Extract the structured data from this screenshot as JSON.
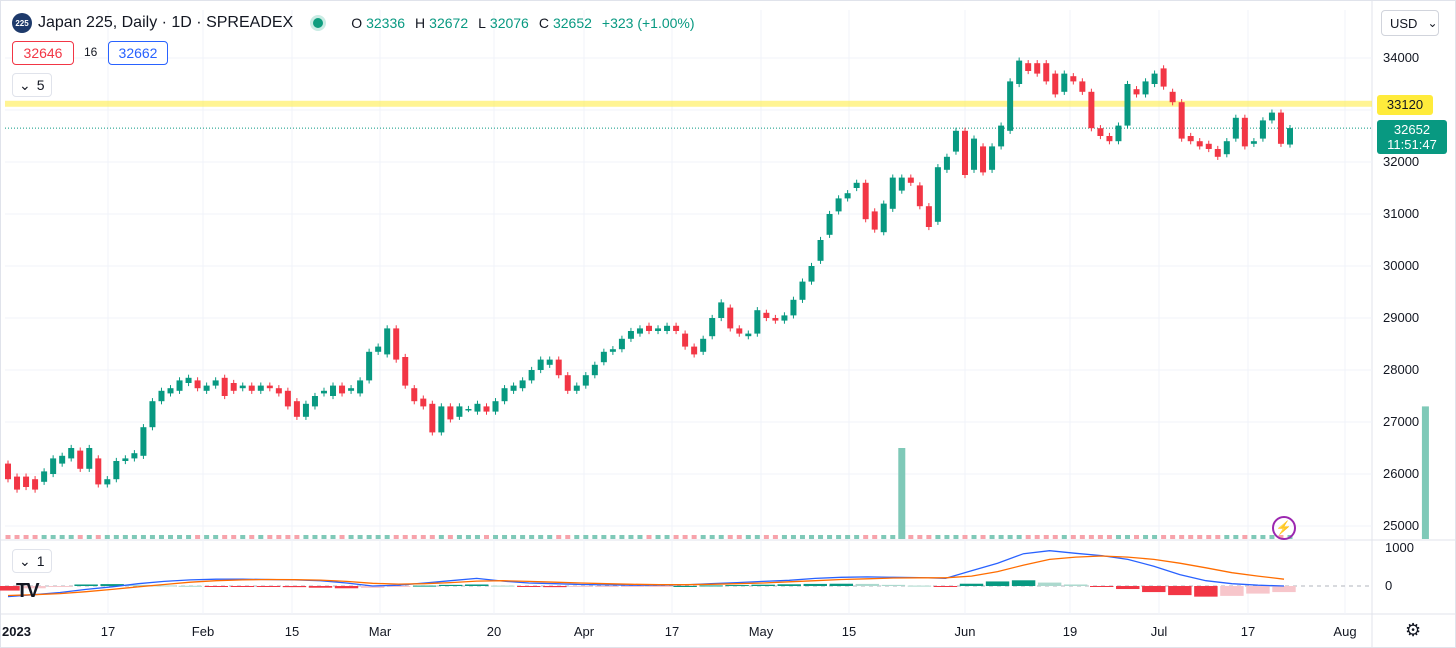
{
  "header": {
    "logo_text": "225",
    "title": "Japan 225, Daily · 1D · SPREADEX",
    "o_key": "O",
    "o_val": "32336",
    "h_key": "H",
    "h_val": "32672",
    "l_key": "L",
    "l_val": "32076",
    "c_key": "C",
    "c_val": "32652",
    "change": "+323 (+1.00%)"
  },
  "quote": {
    "bid": "32646",
    "spread": "16",
    "ask": "32662"
  },
  "main_indicator_toggle": {
    "label": "5",
    "icon": "chevron-down-icon"
  },
  "osc_indicator_toggle": {
    "label": "1",
    "icon": "chevron-down-icon"
  },
  "currency": {
    "label": "USD",
    "icon": "chevron-down-icon"
  },
  "price_level": {
    "label": "33120"
  },
  "last_price": {
    "price": "32652",
    "countdown": "11:51:47"
  },
  "icons": {
    "alert": "bolt-icon",
    "settings": "settings-icon",
    "brand": "tradingview-logo-icon"
  },
  "brand_text": "TV",
  "colors": {
    "up": "#089981",
    "down": "#f23645",
    "level": "#ffeb3b",
    "macd": "#2962ff",
    "signal": "#ff6d00",
    "vol_up": "#7fc9b8",
    "vol_down": "#f7a3ab"
  },
  "chart_data": {
    "type": "candlestick",
    "title": "Japan 225, Daily · 1D · SPREADEX",
    "x_tick_labels": [
      "2023",
      "17",
      "Feb",
      "15",
      "Mar",
      "20",
      "Apr",
      "17",
      "May",
      "15",
      "Jun",
      "19",
      "Jul",
      "17",
      "Aug"
    ],
    "y_tick_labels": [
      "34000",
      "33000",
      "32000",
      "31000",
      "30000",
      "29000",
      "28000",
      "27000",
      "26000",
      "25000"
    ],
    "ylim": [
      24800,
      34500
    ],
    "horizontal_level": 33120,
    "last_price": 32652,
    "grid": true,
    "candles": [
      [
        26200,
        25900
      ],
      [
        25950,
        25700
      ],
      [
        25950,
        25750
      ],
      [
        25900,
        25700
      ],
      [
        25850,
        26050
      ],
      [
        26000,
        26300
      ],
      [
        26200,
        26350
      ],
      [
        26300,
        26500
      ],
      [
        26450,
        26100
      ],
      [
        26100,
        26500
      ],
      [
        26300,
        25800
      ],
      [
        25800,
        25900
      ],
      [
        25900,
        26250
      ],
      [
        26250,
        26300
      ],
      [
        26300,
        26400
      ],
      [
        26350,
        26900
      ],
      [
        26900,
        27400
      ],
      [
        27400,
        27600
      ],
      [
        27550,
        27650
      ],
      [
        27600,
        27800
      ],
      [
        27750,
        27850
      ],
      [
        27800,
        27650
      ],
      [
        27600,
        27700
      ],
      [
        27700,
        27800
      ],
      [
        27850,
        27500
      ],
      [
        27750,
        27600
      ],
      [
        27650,
        27700
      ],
      [
        27700,
        27600
      ],
      [
        27600,
        27700
      ],
      [
        27700,
        27650
      ],
      [
        27650,
        27550
      ],
      [
        27600,
        27300
      ],
      [
        27400,
        27100
      ],
      [
        27100,
        27350
      ],
      [
        27300,
        27500
      ],
      [
        27550,
        27600
      ],
      [
        27500,
        27700
      ],
      [
        27700,
        27550
      ],
      [
        27600,
        27650
      ],
      [
        27550,
        27800
      ],
      [
        27800,
        28350
      ],
      [
        28350,
        28450
      ],
      [
        28300,
        28800
      ],
      [
        28800,
        28200
      ],
      [
        28250,
        27700
      ],
      [
        27650,
        27400
      ],
      [
        27450,
        27300
      ],
      [
        27350,
        26800
      ],
      [
        26800,
        27300
      ],
      [
        27300,
        27050
      ],
      [
        27100,
        27300
      ],
      [
        27250,
        27250
      ],
      [
        27200,
        27350
      ],
      [
        27300,
        27200
      ],
      [
        27200,
        27400
      ],
      [
        27400,
        27650
      ],
      [
        27600,
        27700
      ],
      [
        27650,
        27800
      ],
      [
        27800,
        28000
      ],
      [
        28000,
        28200
      ],
      [
        28100,
        28200
      ],
      [
        28200,
        27900
      ],
      [
        27900,
        27600
      ],
      [
        27600,
        27700
      ],
      [
        27700,
        27900
      ],
      [
        27900,
        28100
      ],
      [
        28150,
        28350
      ],
      [
        28350,
        28400
      ],
      [
        28400,
        28600
      ],
      [
        28600,
        28750
      ],
      [
        28700,
        28800
      ],
      [
        28850,
        28750
      ],
      [
        28750,
        28800
      ],
      [
        28750,
        28850
      ],
      [
        28850,
        28750
      ],
      [
        28700,
        28450
      ],
      [
        28450,
        28300
      ],
      [
        28350,
        28600
      ],
      [
        28650,
        29000
      ],
      [
        29000,
        29300
      ],
      [
        29200,
        28800
      ],
      [
        28800,
        28700
      ],
      [
        28650,
        28700
      ],
      [
        28700,
        29150
      ],
      [
        29100,
        29000
      ],
      [
        29000,
        28950
      ],
      [
        28950,
        29050
      ],
      [
        29050,
        29350
      ],
      [
        29350,
        29700
      ],
      [
        29700,
        30000
      ],
      [
        30100,
        30500
      ],
      [
        30600,
        31000
      ],
      [
        31050,
        31300
      ],
      [
        31300,
        31400
      ],
      [
        31500,
        31600
      ],
      [
        31600,
        30900
      ],
      [
        31050,
        30700
      ],
      [
        30650,
        31200
      ],
      [
        31100,
        31700
      ],
      [
        31450,
        31700
      ],
      [
        31700,
        31600
      ],
      [
        31550,
        31150
      ],
      [
        31150,
        30750
      ],
      [
        30850,
        31900
      ],
      [
        31850,
        32100
      ],
      [
        32200,
        32600
      ],
      [
        32600,
        31750
      ],
      [
        31850,
        32450
      ],
      [
        32300,
        31800
      ],
      [
        31850,
        32300
      ],
      [
        32300,
        32700
      ],
      [
        32600,
        33550
      ],
      [
        33500,
        33950
      ],
      [
        33900,
        33750
      ],
      [
        33900,
        33700
      ],
      [
        33900,
        33550
      ],
      [
        33700,
        33300
      ],
      [
        33350,
        33700
      ],
      [
        33650,
        33550
      ],
      [
        33550,
        33350
      ],
      [
        33350,
        32650
      ],
      [
        32650,
        32500
      ],
      [
        32500,
        32400
      ],
      [
        32400,
        32700
      ],
      [
        32700,
        33500
      ],
      [
        33400,
        33300
      ],
      [
        33300,
        33550
      ],
      [
        33500,
        33700
      ],
      [
        33800,
        33450
      ],
      [
        33350,
        33150
      ],
      [
        33150,
        32450
      ],
      [
        32500,
        32400
      ],
      [
        32400,
        32300
      ],
      [
        32350,
        32250
      ],
      [
        32250,
        32100
      ],
      [
        32150,
        32400
      ],
      [
        32450,
        32850
      ],
      [
        32850,
        32300
      ],
      [
        32350,
        32400
      ],
      [
        32450,
        32800
      ],
      [
        32800,
        32950
      ],
      [
        32950,
        32350
      ],
      [
        32336,
        32652
      ]
    ],
    "volume": [
      {
        "index": 99,
        "value": 26500,
        "direction": "up"
      },
      {
        "index": 157,
        "value": 27300,
        "direction": "up"
      }
    ],
    "macd_axis_labels": [
      "1000",
      "0"
    ],
    "macd": {
      "series": [
        {
          "type": "line",
          "values": [
            -280,
            -230,
            -170,
            -90,
            -20,
            60,
            120,
            160,
            180,
            180,
            170,
            160,
            140,
            80,
            0,
            20,
            80,
            140,
            200,
            130,
            80,
            60,
            40,
            30,
            20,
            20,
            30,
            60,
            90,
            120,
            150,
            200,
            230,
            240,
            230,
            220,
            200,
            400,
            600,
            850,
            930,
            860,
            800,
            700,
            520,
            300,
            140,
            60,
            20,
            0
          ]
        },
        {
          "type": "line",
          "values": [
            -250,
            -230,
            -200,
            -150,
            -90,
            -20,
            40,
            100,
            140,
            160,
            170,
            165,
            155,
            120,
            70,
            50,
            60,
            90,
            130,
            140,
            120,
            100,
            80,
            60,
            45,
            35,
            35,
            45,
            60,
            80,
            110,
            140,
            170,
            190,
            210,
            215,
            215,
            260,
            380,
            550,
            700,
            760,
            790,
            760,
            700,
            600,
            480,
            350,
            260,
            180
          ]
        },
        {
          "type": "bar",
          "values": [
            -120,
            -60,
            -10,
            40,
            50,
            30,
            15,
            5,
            -5,
            -10,
            -20,
            -30,
            -45,
            -60,
            -50,
            -20,
            10,
            30,
            40,
            10,
            -20,
            -30,
            -25,
            -20,
            -15,
            -10,
            0,
            15,
            25,
            35,
            45,
            55,
            60,
            55,
            30,
            10,
            -15,
            60,
            120,
            150,
            90,
            40,
            -10,
            -80,
            -160,
            -240,
            -280,
            -260,
            -200,
            -160
          ]
        }
      ]
    }
  }
}
